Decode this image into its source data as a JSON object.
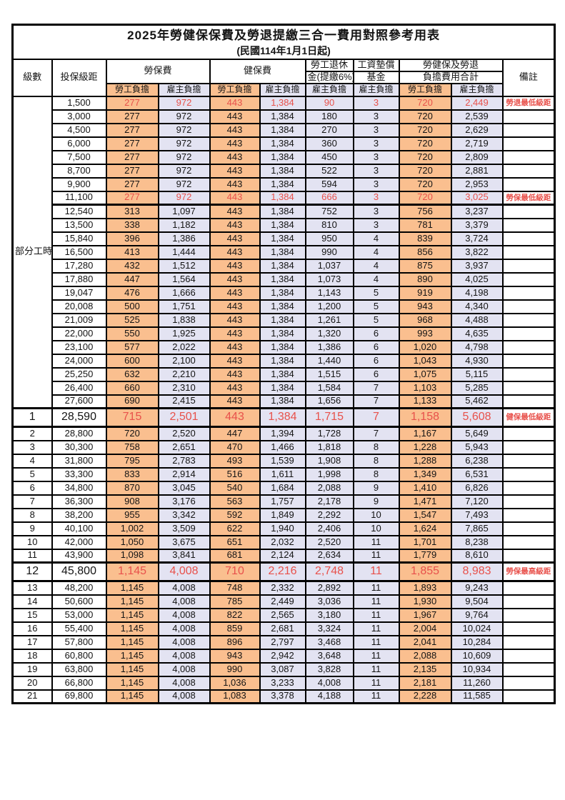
{
  "title": "2025年勞健保保費及勞退提繳三合一費用對照參考用表",
  "subtitle": "(民國114年1月1日起)",
  "colors": {
    "employee_bg": "#FABF8F",
    "employer_bg": "#E3E3F2",
    "highlight_red": "#E8514B",
    "border": "#000000"
  },
  "headers": {
    "level": "級數",
    "bracket": "投保級距",
    "labor_insurance": "勞保費",
    "health_insurance": "健保費",
    "pension_line1": "勞工退休",
    "pension_line2": "金(提繳6%)",
    "wage_fund_line1": "工資墊償",
    "wage_fund_line2": "基金",
    "total_line1": "勞健保及勞退",
    "total_line2": "負擔費用合計",
    "remark": "備註",
    "employee": "勞工負擔",
    "employer": "雇主負擔"
  },
  "part_time_label": "部分工時",
  "rows": [
    {
      "level": "",
      "salary": "1,500",
      "li_emp": "277",
      "li_er": "972",
      "hi_emp": "443",
      "hi_er": "1,384",
      "pension": "90",
      "fund": "3",
      "t_emp": "720",
      "t_er": "2,449",
      "remark": "勞退最低級距",
      "red": true,
      "big": false,
      "thick": false
    },
    {
      "level": "",
      "salary": "3,000",
      "li_emp": "277",
      "li_er": "972",
      "hi_emp": "443",
      "hi_er": "1,384",
      "pension": "180",
      "fund": "3",
      "t_emp": "720",
      "t_er": "2,539",
      "remark": "",
      "red": false,
      "big": false,
      "thick": false
    },
    {
      "level": "",
      "salary": "4,500",
      "li_emp": "277",
      "li_er": "972",
      "hi_emp": "443",
      "hi_er": "1,384",
      "pension": "270",
      "fund": "3",
      "t_emp": "720",
      "t_er": "2,629",
      "remark": "",
      "red": false,
      "big": false,
      "thick": false
    },
    {
      "level": "",
      "salary": "6,000",
      "li_emp": "277",
      "li_er": "972",
      "hi_emp": "443",
      "hi_er": "1,384",
      "pension": "360",
      "fund": "3",
      "t_emp": "720",
      "t_er": "2,719",
      "remark": "",
      "red": false,
      "big": false,
      "thick": false
    },
    {
      "level": "",
      "salary": "7,500",
      "li_emp": "277",
      "li_er": "972",
      "hi_emp": "443",
      "hi_er": "1,384",
      "pension": "450",
      "fund": "3",
      "t_emp": "720",
      "t_er": "2,809",
      "remark": "",
      "red": false,
      "big": false,
      "thick": false
    },
    {
      "level": "",
      "salary": "8,700",
      "li_emp": "277",
      "li_er": "972",
      "hi_emp": "443",
      "hi_er": "1,384",
      "pension": "522",
      "fund": "3",
      "t_emp": "720",
      "t_er": "2,881",
      "remark": "",
      "red": false,
      "big": false,
      "thick": false
    },
    {
      "level": "",
      "salary": "9,900",
      "li_emp": "277",
      "li_er": "972",
      "hi_emp": "443",
      "hi_er": "1,384",
      "pension": "594",
      "fund": "3",
      "t_emp": "720",
      "t_er": "2,953",
      "remark": "",
      "red": false,
      "big": false,
      "thick": false
    },
    {
      "level": "",
      "salary": "11,100",
      "li_emp": "277",
      "li_er": "972",
      "hi_emp": "443",
      "hi_er": "1,384",
      "pension": "666",
      "fund": "3",
      "t_emp": "720",
      "t_er": "3,025",
      "remark": "勞保最低級距",
      "red": true,
      "big": false,
      "thick": true
    },
    {
      "level": "",
      "salary": "12,540",
      "li_emp": "313",
      "li_er": "1,097",
      "hi_emp": "443",
      "hi_er": "1,384",
      "pension": "752",
      "fund": "3",
      "t_emp": "756",
      "t_er": "3,237",
      "remark": "",
      "red": false,
      "big": false,
      "thick": false
    },
    {
      "level": "",
      "salary": "13,500",
      "li_emp": "338",
      "li_er": "1,182",
      "hi_emp": "443",
      "hi_er": "1,384",
      "pension": "810",
      "fund": "3",
      "t_emp": "781",
      "t_er": "3,379",
      "remark": "",
      "red": false,
      "big": false,
      "thick": false
    },
    {
      "level": "",
      "salary": "15,840",
      "li_emp": "396",
      "li_er": "1,386",
      "hi_emp": "443",
      "hi_er": "1,384",
      "pension": "950",
      "fund": "4",
      "t_emp": "839",
      "t_er": "3,724",
      "remark": "",
      "red": false,
      "big": false,
      "thick": false
    },
    {
      "level": "",
      "salary": "16,500",
      "li_emp": "413",
      "li_er": "1,444",
      "hi_emp": "443",
      "hi_er": "1,384",
      "pension": "990",
      "fund": "4",
      "t_emp": "856",
      "t_er": "3,822",
      "remark": "",
      "red": false,
      "big": false,
      "thick": false
    },
    {
      "level": "",
      "salary": "17,280",
      "li_emp": "432",
      "li_er": "1,512",
      "hi_emp": "443",
      "hi_er": "1,384",
      "pension": "1,037",
      "fund": "4",
      "t_emp": "875",
      "t_er": "3,937",
      "remark": "",
      "red": false,
      "big": false,
      "thick": false
    },
    {
      "level": "",
      "salary": "17,880",
      "li_emp": "447",
      "li_er": "1,564",
      "hi_emp": "443",
      "hi_er": "1,384",
      "pension": "1,073",
      "fund": "4",
      "t_emp": "890",
      "t_er": "4,025",
      "remark": "",
      "red": false,
      "big": false,
      "thick": false
    },
    {
      "level": "",
      "salary": "19,047",
      "li_emp": "476",
      "li_er": "1,666",
      "hi_emp": "443",
      "hi_er": "1,384",
      "pension": "1,143",
      "fund": "5",
      "t_emp": "919",
      "t_er": "4,198",
      "remark": "",
      "red": false,
      "big": false,
      "thick": false
    },
    {
      "level": "",
      "salary": "20,008",
      "li_emp": "500",
      "li_er": "1,751",
      "hi_emp": "443",
      "hi_er": "1,384",
      "pension": "1,200",
      "fund": "5",
      "t_emp": "943",
      "t_er": "4,340",
      "remark": "",
      "red": false,
      "big": false,
      "thick": false
    },
    {
      "level": "",
      "salary": "21,009",
      "li_emp": "525",
      "li_er": "1,838",
      "hi_emp": "443",
      "hi_er": "1,384",
      "pension": "1,261",
      "fund": "5",
      "t_emp": "968",
      "t_er": "4,488",
      "remark": "",
      "red": false,
      "big": false,
      "thick": false
    },
    {
      "level": "",
      "salary": "22,000",
      "li_emp": "550",
      "li_er": "1,925",
      "hi_emp": "443",
      "hi_er": "1,384",
      "pension": "1,320",
      "fund": "6",
      "t_emp": "993",
      "t_er": "4,635",
      "remark": "",
      "red": false,
      "big": false,
      "thick": false
    },
    {
      "level": "",
      "salary": "23,100",
      "li_emp": "577",
      "li_er": "2,022",
      "hi_emp": "443",
      "hi_er": "1,384",
      "pension": "1,386",
      "fund": "6",
      "t_emp": "1,020",
      "t_er": "4,798",
      "remark": "",
      "red": false,
      "big": false,
      "thick": false
    },
    {
      "level": "",
      "salary": "24,000",
      "li_emp": "600",
      "li_er": "2,100",
      "hi_emp": "443",
      "hi_er": "1,384",
      "pension": "1,440",
      "fund": "6",
      "t_emp": "1,043",
      "t_er": "4,930",
      "remark": "",
      "red": false,
      "big": false,
      "thick": false
    },
    {
      "level": "",
      "salary": "25,250",
      "li_emp": "632",
      "li_er": "2,210",
      "hi_emp": "443",
      "hi_er": "1,384",
      "pension": "1,515",
      "fund": "6",
      "t_emp": "1,075",
      "t_er": "5,115",
      "remark": "",
      "red": false,
      "big": false,
      "thick": false
    },
    {
      "level": "",
      "salary": "26,400",
      "li_emp": "660",
      "li_er": "2,310",
      "hi_emp": "443",
      "hi_er": "1,384",
      "pension": "1,584",
      "fund": "7",
      "t_emp": "1,103",
      "t_er": "5,285",
      "remark": "",
      "red": false,
      "big": false,
      "thick": false
    },
    {
      "level": "",
      "salary": "27,600",
      "li_emp": "690",
      "li_er": "2,415",
      "hi_emp": "443",
      "hi_er": "1,384",
      "pension": "1,656",
      "fund": "7",
      "t_emp": "1,133",
      "t_er": "5,462",
      "remark": "",
      "red": false,
      "big": false,
      "thick": false
    },
    {
      "level": "1",
      "salary": "28,590",
      "li_emp": "715",
      "li_er": "2,501",
      "hi_emp": "443",
      "hi_er": "1,384",
      "pension": "1,715",
      "fund": "7",
      "t_emp": "1,158",
      "t_er": "5,608",
      "remark": "健保最低級距",
      "red": true,
      "big": true,
      "thick": false
    },
    {
      "level": "2",
      "salary": "28,800",
      "li_emp": "720",
      "li_er": "2,520",
      "hi_emp": "447",
      "hi_er": "1,394",
      "pension": "1,728",
      "fund": "7",
      "t_emp": "1,167",
      "t_er": "5,649",
      "remark": "",
      "red": false,
      "big": false,
      "thick": false
    },
    {
      "level": "3",
      "salary": "30,300",
      "li_emp": "758",
      "li_er": "2,651",
      "hi_emp": "470",
      "hi_er": "1,466",
      "pension": "1,818",
      "fund": "8",
      "t_emp": "1,228",
      "t_er": "5,943",
      "remark": "",
      "red": false,
      "big": false,
      "thick": false
    },
    {
      "level": "4",
      "salary": "31,800",
      "li_emp": "795",
      "li_er": "2,783",
      "hi_emp": "493",
      "hi_er": "1,539",
      "pension": "1,908",
      "fund": "8",
      "t_emp": "1,288",
      "t_er": "6,238",
      "remark": "",
      "red": false,
      "big": false,
      "thick": false
    },
    {
      "level": "5",
      "salary": "33,300",
      "li_emp": "833",
      "li_er": "2,914",
      "hi_emp": "516",
      "hi_er": "1,611",
      "pension": "1,998",
      "fund": "8",
      "t_emp": "1,349",
      "t_er": "6,531",
      "remark": "",
      "red": false,
      "big": false,
      "thick": false
    },
    {
      "level": "6",
      "salary": "34,800",
      "li_emp": "870",
      "li_er": "3,045",
      "hi_emp": "540",
      "hi_er": "1,684",
      "pension": "2,088",
      "fund": "9",
      "t_emp": "1,410",
      "t_er": "6,826",
      "remark": "",
      "red": false,
      "big": false,
      "thick": false
    },
    {
      "level": "7",
      "salary": "36,300",
      "li_emp": "908",
      "li_er": "3,176",
      "hi_emp": "563",
      "hi_er": "1,757",
      "pension": "2,178",
      "fund": "9",
      "t_emp": "1,471",
      "t_er": "7,120",
      "remark": "",
      "red": false,
      "big": false,
      "thick": false
    },
    {
      "level": "8",
      "salary": "38,200",
      "li_emp": "955",
      "li_er": "3,342",
      "hi_emp": "592",
      "hi_er": "1,849",
      "pension": "2,292",
      "fund": "10",
      "t_emp": "1,547",
      "t_er": "7,493",
      "remark": "",
      "red": false,
      "big": false,
      "thick": false
    },
    {
      "level": "9",
      "salary": "40,100",
      "li_emp": "1,002",
      "li_er": "3,509",
      "hi_emp": "622",
      "hi_er": "1,940",
      "pension": "2,406",
      "fund": "10",
      "t_emp": "1,624",
      "t_er": "7,865",
      "remark": "",
      "red": false,
      "big": false,
      "thick": false
    },
    {
      "level": "10",
      "salary": "42,000",
      "li_emp": "1,050",
      "li_er": "3,675",
      "hi_emp": "651",
      "hi_er": "2,032",
      "pension": "2,520",
      "fund": "11",
      "t_emp": "1,701",
      "t_er": "8,238",
      "remark": "",
      "red": false,
      "big": false,
      "thick": false
    },
    {
      "level": "11",
      "salary": "43,900",
      "li_emp": "1,098",
      "li_er": "3,841",
      "hi_emp": "681",
      "hi_er": "2,124",
      "pension": "2,634",
      "fund": "11",
      "t_emp": "1,779",
      "t_er": "8,610",
      "remark": "",
      "red": false,
      "big": false,
      "thick": false
    },
    {
      "level": "12",
      "salary": "45,800",
      "li_emp": "1,145",
      "li_er": "4,008",
      "hi_emp": "710",
      "hi_er": "2,216",
      "pension": "2,748",
      "fund": "11",
      "t_emp": "1,855",
      "t_er": "8,983",
      "remark": "勞保最高級距",
      "red": true,
      "big": true,
      "thick": false
    },
    {
      "level": "13",
      "salary": "48,200",
      "li_emp": "1,145",
      "li_er": "4,008",
      "hi_emp": "748",
      "hi_er": "2,332",
      "pension": "2,892",
      "fund": "11",
      "t_emp": "1,893",
      "t_er": "9,243",
      "remark": "",
      "red": false,
      "big": false,
      "thick": false
    },
    {
      "level": "14",
      "salary": "50,600",
      "li_emp": "1,145",
      "li_er": "4,008",
      "hi_emp": "785",
      "hi_er": "2,449",
      "pension": "3,036",
      "fund": "11",
      "t_emp": "1,930",
      "t_er": "9,504",
      "remark": "",
      "red": false,
      "big": false,
      "thick": false
    },
    {
      "level": "15",
      "salary": "53,000",
      "li_emp": "1,145",
      "li_er": "4,008",
      "hi_emp": "822",
      "hi_er": "2,565",
      "pension": "3,180",
      "fund": "11",
      "t_emp": "1,967",
      "t_er": "9,764",
      "remark": "",
      "red": false,
      "big": false,
      "thick": false
    },
    {
      "level": "16",
      "salary": "55,400",
      "li_emp": "1,145",
      "li_er": "4,008",
      "hi_emp": "859",
      "hi_er": "2,681",
      "pension": "3,324",
      "fund": "11",
      "t_emp": "2,004",
      "t_er": "10,024",
      "remark": "",
      "red": false,
      "big": false,
      "thick": false
    },
    {
      "level": "17",
      "salary": "57,800",
      "li_emp": "1,145",
      "li_er": "4,008",
      "hi_emp": "896",
      "hi_er": "2,797",
      "pension": "3,468",
      "fund": "11",
      "t_emp": "2,041",
      "t_er": "10,284",
      "remark": "",
      "red": false,
      "big": false,
      "thick": false
    },
    {
      "level": "18",
      "salary": "60,800",
      "li_emp": "1,145",
      "li_er": "4,008",
      "hi_emp": "943",
      "hi_er": "2,942",
      "pension": "3,648",
      "fund": "11",
      "t_emp": "2,088",
      "t_er": "10,609",
      "remark": "",
      "red": false,
      "big": false,
      "thick": false
    },
    {
      "level": "19",
      "salary": "63,800",
      "li_emp": "1,145",
      "li_er": "4,008",
      "hi_emp": "990",
      "hi_er": "3,087",
      "pension": "3,828",
      "fund": "11",
      "t_emp": "2,135",
      "t_er": "10,934",
      "remark": "",
      "red": false,
      "big": false,
      "thick": false
    },
    {
      "level": "20",
      "salary": "66,800",
      "li_emp": "1,145",
      "li_er": "4,008",
      "hi_emp": "1,036",
      "hi_er": "3,233",
      "pension": "4,008",
      "fund": "11",
      "t_emp": "2,181",
      "t_er": "11,260",
      "remark": "",
      "red": false,
      "big": false,
      "thick": false
    },
    {
      "level": "21",
      "salary": "69,800",
      "li_emp": "1,145",
      "li_er": "4,008",
      "hi_emp": "1,083",
      "hi_er": "3,378",
      "pension": "4,188",
      "fund": "11",
      "t_emp": "2,228",
      "t_er": "11,585",
      "remark": "",
      "red": false,
      "big": false,
      "thick": false
    }
  ]
}
